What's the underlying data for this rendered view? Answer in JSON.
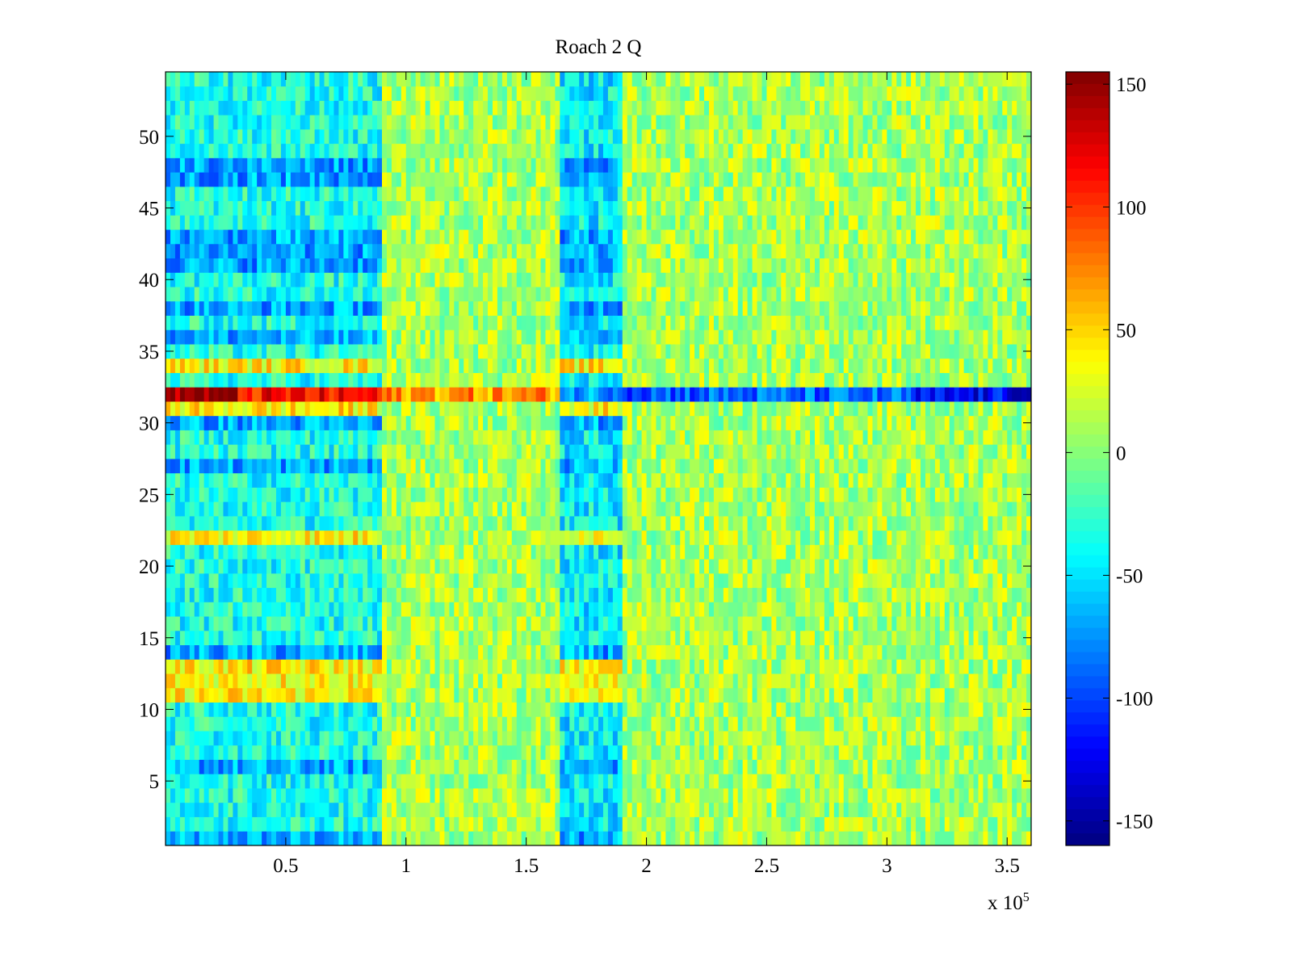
{
  "chart_data": {
    "type": "heatmap",
    "title": "Roach 2 Q",
    "xlabel": "",
    "ylabel": "",
    "x_exponent_label": "x 10",
    "x_exponent_power": "5",
    "xlim": [
      0,
      3.6
    ],
    "ylim": [
      0.5,
      54.5
    ],
    "xticks": [
      0.5,
      1,
      1.5,
      2,
      2.5,
      3,
      3.5
    ],
    "xtick_labels": [
      "0.5",
      "1",
      "1.5",
      "2",
      "2.5",
      "3",
      "3.5"
    ],
    "yticks": [
      5,
      10,
      15,
      20,
      25,
      30,
      35,
      40,
      45,
      50
    ],
    "ytick_labels": [
      "5",
      "10",
      "15",
      "20",
      "25",
      "30",
      "35",
      "40",
      "45",
      "50"
    ],
    "rows": 54,
    "colormap": "jet",
    "clim": [
      -160,
      155
    ],
    "colorbar_ticks": [
      150,
      100,
      50,
      0,
      -50,
      -100,
      -150
    ],
    "colorbar_tick_labels": [
      "150",
      "100",
      "50",
      "0",
      "-50",
      "-100",
      "-150"
    ],
    "segments_x": [
      0,
      0.9,
      1.65,
      1.9,
      3.6
    ],
    "segment_base_values": [
      -35,
      10,
      -45,
      10
    ],
    "strong_row": 32,
    "strong_row_values": [
      {
        "x_from": 0,
        "x_to": 0.3,
        "value": 150
      },
      {
        "x_from": 0.3,
        "x_to": 0.9,
        "value": 110
      },
      {
        "x_from": 0.9,
        "x_to": 1.65,
        "value": 70
      },
      {
        "x_from": 1.65,
        "x_to": 1.9,
        "value": -70
      },
      {
        "x_from": 1.9,
        "x_to": 3.1,
        "value": -90
      },
      {
        "x_from": 3.1,
        "x_to": 3.6,
        "value": -125
      }
    ],
    "warm_rows": [
      11,
      12,
      13,
      22,
      31,
      34
    ],
    "warm_row_value": 40,
    "cool_rows": [
      1,
      6,
      14,
      27,
      30,
      36,
      38,
      41,
      42,
      43,
      47,
      48
    ],
    "cool_row_value": -70
  }
}
